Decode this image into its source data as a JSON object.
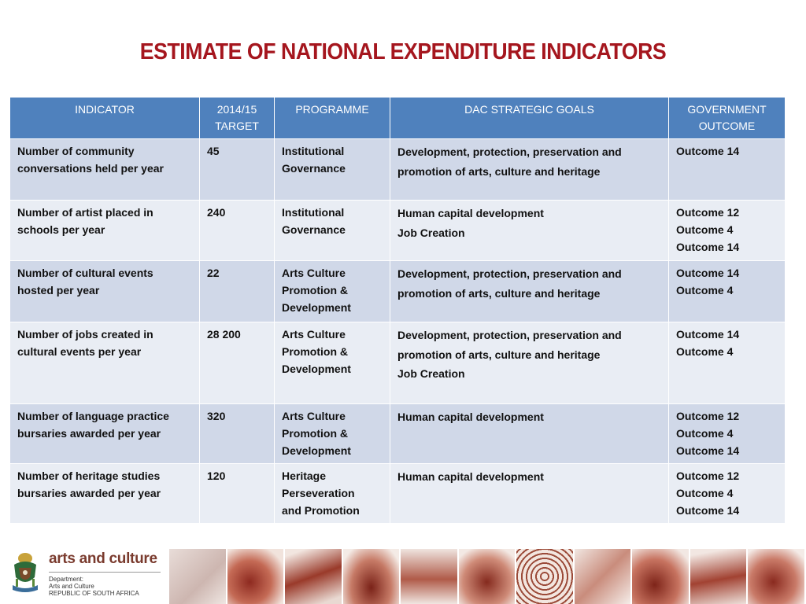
{
  "title": "ESTIMATE OF NATIONAL EXPENDITURE INDICATORS",
  "headers": [
    [
      "INDICATOR"
    ],
    [
      "2014/15",
      "TARGET"
    ],
    [
      "PROGRAMME"
    ],
    [
      "DAC STRATEGIC GOALS"
    ],
    [
      "GOVERNMENT",
      "OUTCOME"
    ]
  ],
  "rows": [
    {
      "indicator": [
        "Number of  community",
        "conversations held per year"
      ],
      "target": "45",
      "programme": [
        "Institutional",
        "Governance"
      ],
      "goals": [
        "Development, protection, preservation and",
        "promotion of arts, culture and heritage"
      ],
      "outcome": [
        "Outcome 14"
      ]
    },
    {
      "indicator": [
        "Number of artist placed in",
        "schools per year"
      ],
      "target": "240",
      "programme": [
        "Institutional",
        "Governance"
      ],
      "goals": [
        "Human capital development",
        "Job Creation"
      ],
      "outcome": [
        "Outcome 12",
        "Outcome 4",
        "Outcome 14"
      ]
    },
    {
      "indicator": [
        "Number of cultural events",
        "hosted per year"
      ],
      "target": "22",
      "programme": [
        "Arts Culture",
        "Promotion &",
        "Development"
      ],
      "goals": [
        "Development, protection, preservation and",
        "promotion of arts, culture and heritage"
      ],
      "outcome": [
        "Outcome 14",
        "Outcome 4"
      ]
    },
    {
      "indicator": [
        "Number of jobs created in",
        "cultural events per year"
      ],
      "target": "28 200",
      "programme": [
        "Arts Culture",
        "Promotion &",
        "Development"
      ],
      "goals": [
        "Development, protection, preservation and",
        "promotion of arts, culture and heritage",
        "Job Creation"
      ],
      "outcome": [
        "Outcome 14",
        "Outcome 4"
      ]
    },
    {
      "indicator": [
        "Number of language practice",
        "bursaries awarded per year"
      ],
      "target": "320",
      "programme": [
        "Arts Culture",
        "Promotion &",
        "Development"
      ],
      "goals": [
        "Human capital development"
      ],
      "outcome": [
        "Outcome 12",
        "Outcome 4",
        "Outcome 14"
      ]
    },
    {
      "indicator": [
        "Number of heritage studies",
        "bursaries awarded per year"
      ],
      "target": "120",
      "programme": [
        "Heritage",
        "Perseveration",
        "and  Promotion"
      ],
      "goals": [
        "Human capital development"
      ],
      "outcome": [
        "Outcome 12",
        "Outcome 4",
        "Outcome 14"
      ]
    }
  ],
  "footer": {
    "brand": "arts and culture",
    "dept_lines": [
      "Department:",
      "Arts and Culture",
      "REPUBLIC OF SOUTH AFRICA"
    ]
  },
  "colors": {
    "title": "#a5161e",
    "header_bg": "#4f81bd",
    "row_odd": "#d0d8e8",
    "row_even": "#e9edf4"
  },
  "icons": [
    "coat-of-arms-icon",
    "photo-strip-tiles"
  ]
}
